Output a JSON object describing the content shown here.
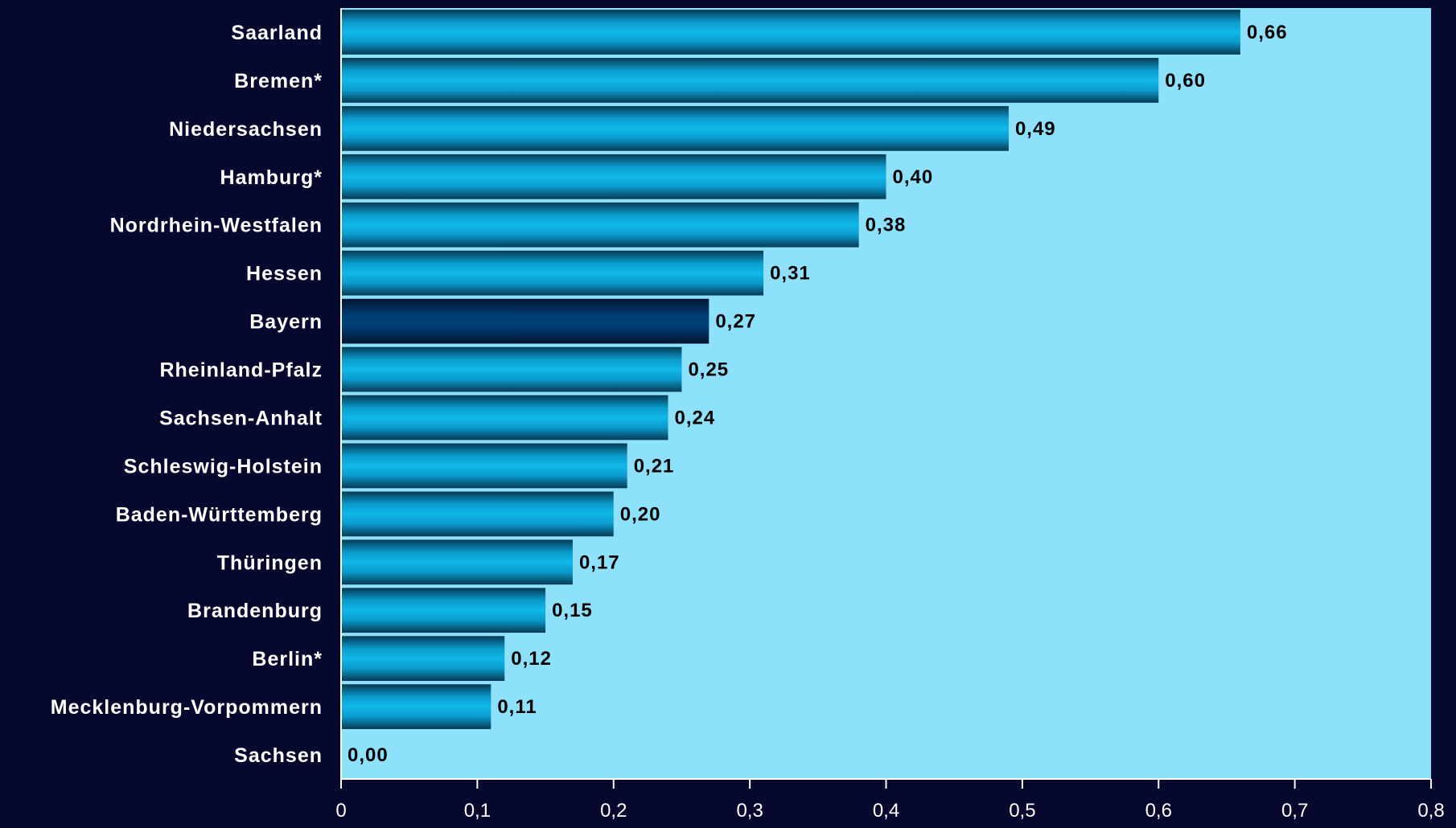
{
  "chart_data": {
    "type": "bar",
    "orientation": "horizontal",
    "title": "",
    "xlabel": "",
    "ylabel": "",
    "categories": [
      "Saarland",
      "Bremen*",
      "Niedersachsen",
      "Hamburg*",
      "Nordrhein-Westfalen",
      "Hessen",
      "Bayern",
      "Rheinland-Pfalz",
      "Sachsen-Anhalt",
      "Schleswig-Holstein",
      "Baden-Württemberg",
      "Thüringen",
      "Brandenburg",
      "Berlin*",
      "Mecklenburg-Vorpommern",
      "Sachsen"
    ],
    "values": [
      0.66,
      0.6,
      0.49,
      0.4,
      0.38,
      0.31,
      0.27,
      0.25,
      0.24,
      0.21,
      0.2,
      0.17,
      0.15,
      0.12,
      0.11,
      0.0
    ],
    "value_labels": [
      "0,66",
      "0,60",
      "0,49",
      "0,40",
      "0,38",
      "0,31",
      "0,27",
      "0,25",
      "0,24",
      "0,21",
      "0,20",
      "0,17",
      "0,15",
      "0,12",
      "0,11",
      "0,00"
    ],
    "xlim": [
      0,
      0.8
    ],
    "x_ticks": [
      0,
      0.1,
      0.2,
      0.3,
      0.4,
      0.5,
      0.6,
      0.7,
      0.8
    ],
    "x_tick_labels": [
      "0",
      "0,1",
      "0,2",
      "0,3",
      "0,4",
      "0,5",
      "0,6",
      "0,7",
      "0,8"
    ],
    "highlight_category": "Bayern",
    "grid": false,
    "legend": "none",
    "colors": {
      "background": "#06082e",
      "plot_area": "#8ee1fb",
      "bar": "#00a9e0",
      "bar_highlight": "#003f78",
      "axis": "#ffffff",
      "category_text": "#ffffff",
      "value_text": "#000000"
    }
  }
}
